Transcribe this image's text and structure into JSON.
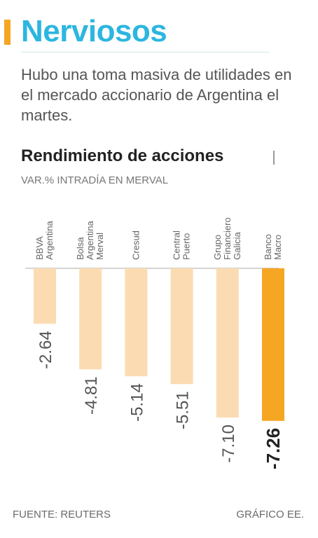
{
  "header": {
    "title": "Nerviosos",
    "subtitle": "Hubo una toma masiva de utilidades en el mercado accionario de Argentina el martes."
  },
  "chart_data": {
    "type": "bar",
    "title": "Rendimiento de acciones",
    "subtitle": "VAR.% INTRADÍA EN MERVAL",
    "categories": [
      [
        "BBVA",
        "Argentina"
      ],
      [
        "Bolsa",
        "Argentina",
        "Merval"
      ],
      [
        "Cresud"
      ],
      [
        "Central",
        "Puerto"
      ],
      [
        "Grupo",
        "Financiero",
        "Galicia"
      ],
      [
        "Banco",
        "Macro"
      ]
    ],
    "values": [
      -2.64,
      -4.81,
      -5.14,
      -5.51,
      -7.1,
      -7.26
    ],
    "value_labels": [
      "-2.64",
      "-4.81",
      "-5.14",
      "-5.51",
      "-7.10",
      "-7.26"
    ],
    "highlight_index": 5,
    "ylim": [
      -7.26,
      0
    ],
    "colors": {
      "bar": "#fbdcb2",
      "highlight": "#f5a623",
      "baseline": "#aaaaaa"
    }
  },
  "footer": {
    "source": "FUENTE: REUTERS",
    "credit": "GRÁFICO EE."
  }
}
